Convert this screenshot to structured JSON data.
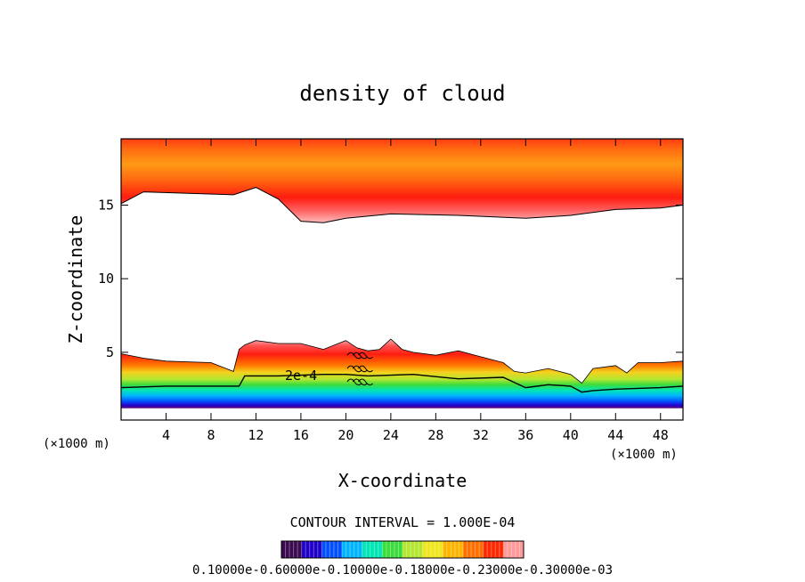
{
  "chart_data": {
    "type": "heatmap",
    "title": "density of cloud",
    "xlabel": "X-coordinate",
    "ylabel": "Z-coordinate",
    "x_unit_left": "(×1000 m)",
    "x_unit_right": "(×1000 m)",
    "xlim": [
      0,
      50
    ],
    "ylim": [
      0.4,
      19.5
    ],
    "x_ticks": [
      4,
      8,
      12,
      16,
      20,
      24,
      28,
      32,
      36,
      40,
      44,
      48
    ],
    "y_ticks": [
      5,
      10,
      15
    ],
    "contour_label": "2e-4",
    "contour_interval_text": "CONTOUR INTERVAL = 1.000E-04",
    "colorbar_text": "0.10000e-0.60000e-0.10000e-0.18000e-0.23000e-0.30000e-03",
    "colorbar_colors": [
      "#3c0a50",
      "#1e00c8",
      "#0050ff",
      "#00b4ff",
      "#00e6b4",
      "#3cdc3c",
      "#b4e632",
      "#f0e61e",
      "#ffb400",
      "#ff6e00",
      "#ff2800",
      "#ff9a9a"
    ],
    "upper_layer": {
      "bottom_x": [
        0,
        2,
        6,
        10,
        12,
        14,
        16,
        18,
        20,
        24,
        30,
        36,
        40,
        44,
        48,
        50
      ],
      "bottom_z": [
        15.1,
        15.9,
        15.8,
        15.7,
        16.2,
        15.4,
        13.9,
        13.8,
        14.1,
        14.4,
        14.3,
        14.1,
        14.3,
        14.7,
        14.8,
        15.0
      ],
      "top_z": 19.5
    },
    "lower_layer": {
      "top_x": [
        0,
        2,
        4,
        8,
        10,
        10.5,
        11,
        12,
        14,
        16,
        18,
        20,
        21,
        22,
        23,
        24,
        25,
        26,
        28,
        30,
        32,
        34,
        35,
        36,
        38,
        40,
        41,
        42,
        44,
        45,
        46,
        48,
        50
      ],
      "top_z": [
        4.9,
        4.6,
        4.4,
        4.3,
        3.7,
        5.2,
        5.5,
        5.8,
        5.6,
        5.6,
        5.2,
        5.8,
        5.3,
        5.1,
        5.2,
        5.9,
        5.2,
        5.0,
        4.8,
        5.1,
        4.7,
        4.3,
        3.7,
        3.6,
        3.9,
        3.5,
        2.9,
        3.9,
        4.1,
        3.6,
        4.3,
        4.3,
        4.4
      ],
      "contour_x": [
        0,
        4,
        8,
        10.5,
        11,
        14,
        18,
        20,
        22,
        26,
        30,
        34,
        36,
        38,
        40,
        41,
        42,
        44,
        48,
        50
      ],
      "contour_z": [
        2.6,
        2.7,
        2.7,
        2.7,
        3.4,
        3.4,
        3.5,
        3.5,
        3.4,
        3.5,
        3.2,
        3.3,
        2.6,
        2.8,
        2.7,
        2.3,
        2.4,
        2.5,
        2.6,
        2.7
      ],
      "base_z": 1.2
    }
  }
}
